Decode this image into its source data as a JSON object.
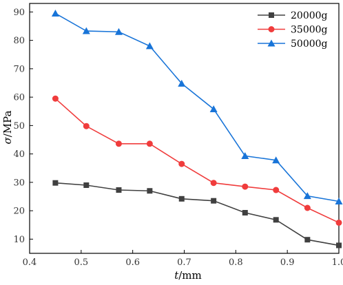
{
  "chart_data": {
    "type": "line",
    "xlabel_symbol": "t",
    "xlabel_unit": "/mm",
    "ylabel_symbol": "σ",
    "ylabel_unit": "/MPa",
    "xlim": [
      0.4,
      1.0
    ],
    "ylim": [
      5,
      93
    ],
    "xticks": [
      0.4,
      0.5,
      0.6,
      0.7,
      0.8,
      0.9,
      1.0
    ],
    "xtick_labels": [
      "0.4",
      "0.5",
      "0.6",
      "0.7",
      "0.8",
      "0.9",
      "1.0"
    ],
    "yticks": [
      10,
      20,
      30,
      40,
      50,
      60,
      70,
      80,
      90
    ],
    "ytick_labels": [
      "10",
      "20",
      "30",
      "40",
      "50",
      "60",
      "70",
      "80",
      "90"
    ],
    "grid": false,
    "legend_position": "top-right",
    "x": [
      0.45,
      0.51,
      0.573,
      0.633,
      0.695,
      0.757,
      0.818,
      0.878,
      0.939,
      1.0
    ],
    "series": [
      {
        "name": "20000g",
        "color": "#404040",
        "marker": "square",
        "values": [
          29.8,
          29.0,
          27.3,
          27.0,
          24.2,
          23.5,
          19.3,
          16.8,
          9.8,
          7.8
        ]
      },
      {
        "name": "35000g",
        "color": "#f03c3c",
        "marker": "circle",
        "values": [
          59.5,
          49.8,
          43.6,
          43.6,
          36.5,
          29.8,
          28.5,
          27.3,
          21.0,
          15.8
        ]
      },
      {
        "name": "50000g",
        "color": "#1874d8",
        "marker": "triangle",
        "values": [
          89.5,
          83.3,
          83.0,
          78.0,
          64.8,
          55.8,
          39.3,
          37.8,
          25.2,
          23.3
        ]
      }
    ]
  }
}
